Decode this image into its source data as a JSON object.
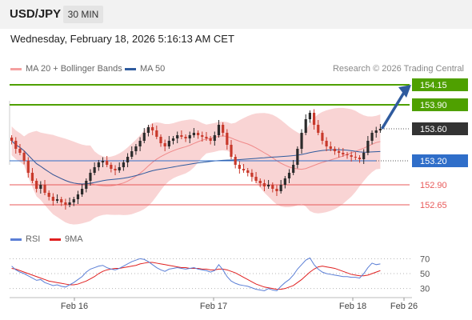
{
  "header": {
    "symbol": "USD/JPY",
    "timeframe": "30 MIN",
    "datetime": "Wednesday, February 18, 2026 5:16:13 AM CET"
  },
  "legend": {
    "bollinger_label": "MA 20 + Bollinger Bands",
    "ma50_label": "MA 50",
    "credit": "Research © 2026 Trading Central"
  },
  "rsi_legend": {
    "rsi_label": "RSI",
    "ma_label": "9MA"
  },
  "colors": {
    "up": "#2b2b2b",
    "down": "#c8392b",
    "bollinger_fill": "#f7c6c6",
    "bollinger_line": "#f08a8a",
    "ma50": "#2f5b9e",
    "resistance": "#4fa000",
    "support": "#e85a5a",
    "current": "#333333",
    "pivot": "#2f6ec9",
    "rsi": "#5b7fd6",
    "rsi_ma": "#e02020"
  },
  "chart_data": [
    {
      "type": "candlestick",
      "x_labels": [
        "Feb 16",
        "Feb 17",
        "Feb 18",
        "Feb 26"
      ],
      "ylim": [
        152.45,
        154.25
      ],
      "levels": [
        {
          "value": 154.15,
          "label": "154.15",
          "kind": "resistance"
        },
        {
          "value": 153.9,
          "label": "153.90",
          "kind": "resistance"
        },
        {
          "value": 153.6,
          "label": "153.60",
          "kind": "current"
        },
        {
          "value": 153.2,
          "label": "153.20",
          "kind": "pivot"
        },
        {
          "value": 152.9,
          "label": "152.90",
          "kind": "support"
        },
        {
          "value": 152.65,
          "label": "152.65",
          "kind": "support"
        }
      ],
      "close": [
        153.45,
        153.35,
        153.3,
        153.2,
        153.05,
        152.95,
        152.85,
        152.9,
        152.8,
        152.75,
        152.7,
        152.72,
        152.68,
        152.65,
        152.68,
        152.72,
        152.78,
        152.85,
        152.95,
        153.05,
        153.12,
        153.18,
        153.2,
        153.15,
        153.1,
        153.08,
        153.12,
        153.18,
        153.25,
        153.32,
        153.38,
        153.45,
        153.55,
        153.62,
        153.58,
        153.5,
        153.42,
        153.38,
        153.45,
        153.48,
        153.52,
        153.5,
        153.48,
        153.52,
        153.55,
        153.52,
        153.5,
        153.48,
        153.45,
        153.52,
        153.65,
        153.55,
        153.4,
        153.25,
        153.15,
        153.1,
        153.08,
        153.05,
        153.0,
        152.95,
        152.92,
        152.88,
        152.9,
        152.85,
        152.82,
        152.9,
        152.98,
        153.05,
        153.15,
        153.35,
        153.55,
        153.72,
        153.8,
        153.65,
        153.55,
        153.45,
        153.38,
        153.35,
        153.32,
        153.3,
        153.28,
        153.27,
        153.25,
        153.24,
        153.22,
        153.3,
        153.45,
        153.55,
        153.58,
        153.6
      ]
    },
    {
      "type": "line",
      "series": [
        {
          "name": "RSI"
        },
        {
          "name": "9MA"
        }
      ],
      "y_ticks": [
        70,
        50,
        30
      ],
      "ylim": [
        20,
        80
      ],
      "rsi": [
        60,
        55,
        52,
        50,
        47,
        44,
        41,
        42,
        38,
        36,
        34,
        35,
        33,
        32,
        35,
        38,
        42,
        46,
        52,
        56,
        58,
        60,
        61,
        58,
        56,
        55,
        57,
        60,
        63,
        66,
        68,
        70,
        69,
        66,
        62,
        58,
        55,
        53,
        56,
        57,
        58,
        57,
        56,
        57,
        58,
        56,
        55,
        54,
        52,
        54,
        62,
        55,
        46,
        40,
        37,
        35,
        34,
        33,
        31,
        29,
        28,
        27,
        30,
        28,
        27,
        33,
        38,
        42,
        48,
        56,
        62,
        68,
        71,
        62,
        56,
        52,
        50,
        49,
        48,
        47,
        46,
        46,
        45,
        45,
        44,
        50,
        58,
        64,
        62,
        63
      ],
      "rsi_ma": [
        57,
        56,
        54,
        52,
        50,
        48,
        46,
        44,
        42,
        40,
        39,
        38,
        37,
        36,
        35,
        35,
        36,
        38,
        40,
        43,
        46,
        50,
        53,
        55,
        56,
        57,
        57,
        58,
        59,
        60,
        61,
        63,
        64,
        65,
        65,
        64,
        63,
        62,
        61,
        60,
        59,
        58,
        58,
        57,
        57,
        57,
        56,
        56,
        55,
        55,
        56,
        56,
        55,
        53,
        51,
        48,
        45,
        42,
        39,
        36,
        34,
        32,
        31,
        30,
        29,
        29,
        30,
        32,
        34,
        38,
        42,
        47,
        52,
        56,
        59,
        60,
        59,
        58,
        57,
        55,
        53,
        51,
        49,
        48,
        47,
        47,
        48,
        50,
        52,
        54
      ]
    }
  ]
}
